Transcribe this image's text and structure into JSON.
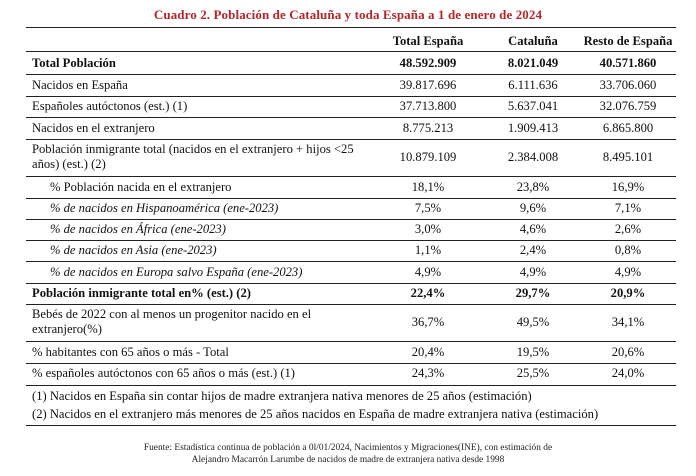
{
  "title": "Cuadro 2. Población de Cataluña y toda España a 1 de enero de 2024",
  "columns": [
    "Total España",
    "Cataluña",
    "Resto de España"
  ],
  "rows": [
    {
      "label": "Total Población",
      "values": [
        "48.592.909",
        "8.021.049",
        "40.571.860"
      ]
    },
    {
      "label": "Nacidos en España",
      "values": [
        "39.817.696",
        "6.111.636",
        "33.706.060"
      ]
    },
    {
      "label": "Españoles autóctonos (est.) (1)",
      "values": [
        "37.713.800",
        "5.637.041",
        "32.076.759"
      ]
    },
    {
      "label": "Nacidos en el extranjero",
      "values": [
        "8.775.213",
        "1.909.413",
        "6.865.800"
      ]
    },
    {
      "label": "Población inmigrante total (nacidos en el extranjero + hijos <25 años) (est.) (2)",
      "values": [
        "10.879.109",
        "2.384.008",
        "8.495.101"
      ]
    },
    {
      "label": "% Población nacida en el extranjero",
      "values": [
        "18,1%",
        "23,8%",
        "16,9%"
      ]
    },
    {
      "label": "% de nacidos en Hispanoamérica (ene-2023)",
      "values": [
        "7,5%",
        "9,6%",
        "7,1%"
      ]
    },
    {
      "label": "% de nacidos en África (ene-2023)",
      "values": [
        "3,0%",
        "4,6%",
        "2,6%"
      ]
    },
    {
      "label": "% de nacidos en Asia (ene-2023)",
      "values": [
        "1,1%",
        "2,4%",
        "0,8%"
      ]
    },
    {
      "label": "% de nacidos en Europa salvo España (ene-2023)",
      "values": [
        "4,9%",
        "4,9%",
        "4,9%"
      ]
    },
    {
      "label": "Población inmigrante total en% (est.) (2)",
      "values": [
        "22,4%",
        "29,7%",
        "20,9%"
      ]
    },
    {
      "label": "Bebés de 2022 con al menos un progenitor nacido en el extranjero(%)",
      "values": [
        "36,7%",
        "49,5%",
        "34,1%"
      ]
    },
    {
      "label": "% habitantes con 65 años o más - Total",
      "values": [
        "20,4%",
        "19,5%",
        "20,6%"
      ]
    },
    {
      "label": "% españoles autóctonos con 65 años o más (est.) (1)",
      "values": [
        "24,3%",
        "25,5%",
        "24,0%"
      ]
    }
  ],
  "notes": [
    "(1) Nacidos en España sin contar hijos de madre extranjera nativa menores de 25 años (estimación)",
    "(2) Nacidos en el extranjero más menores de 25 años nacidos en España de madre extranjera nativa (estimación)"
  ],
  "source": [
    "Fuente: Estadística continua de población a 0l/01/2024, Nacimientos y Migraciones(INE), con estimación de",
    "Alejandro Macarrón Larumbe de nacidos de madre de extranjera nativa desde 1998"
  ],
  "colors": {
    "title": "#b3262a",
    "rule": "#222222"
  }
}
